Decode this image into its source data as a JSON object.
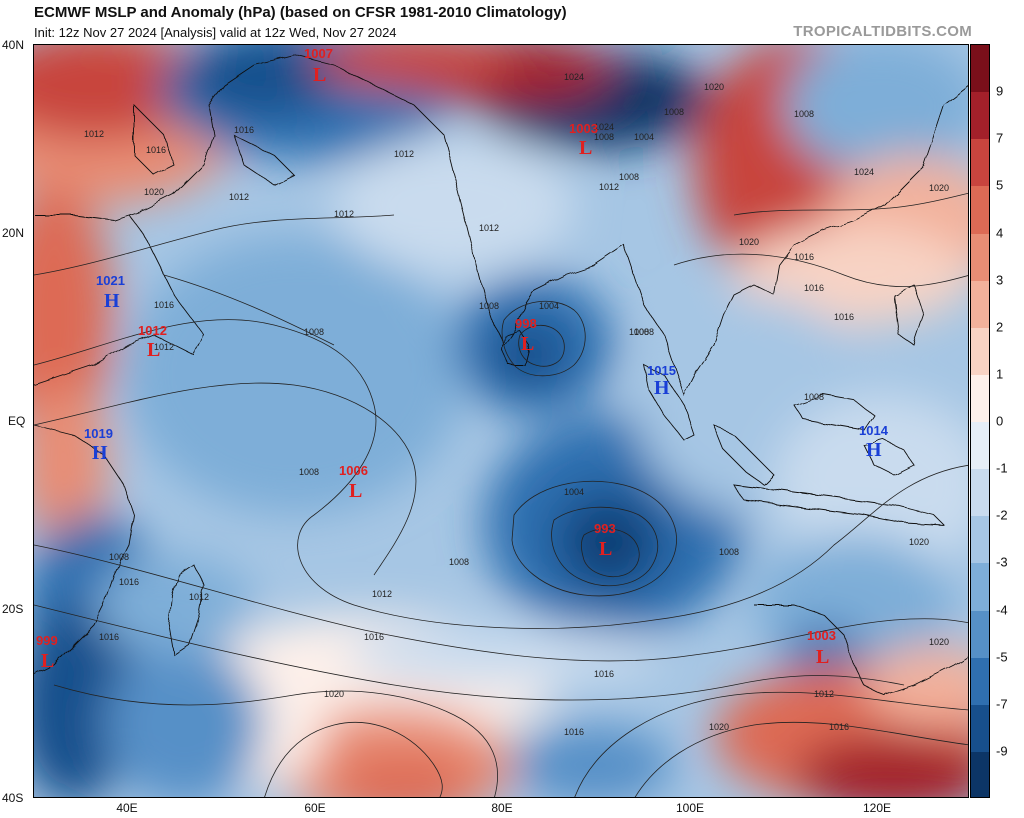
{
  "header": {
    "title": "ECMWF MSLP and Anomaly (hPa) (based on CFSR 1981-2010 Climatology)",
    "subtitle": "Init: 12z Nov 27 2024   [Analysis]   valid at 12z Wed, Nov 27 2024",
    "brand": "TROPICALTIDBITS.COM"
  },
  "axes": {
    "lat_labels": [
      "40N",
      "20N",
      "EQ",
      "20S",
      "40S"
    ],
    "lon_labels": [
      "40E",
      "60E",
      "80E",
      "100E",
      "120E"
    ]
  },
  "colorbar": {
    "labels": [
      "9",
      "7",
      "5",
      "4",
      "3",
      "2",
      "1",
      "0",
      "-1",
      "-2",
      "-3",
      "-4",
      "-5",
      "-7",
      "-9"
    ],
    "colors": [
      "#7a0f1a",
      "#a3202a",
      "#c8443e",
      "#dd6a55",
      "#e88d75",
      "#f2b19b",
      "#f8d3c4",
      "#fdf0ea",
      "#e6eef7",
      "#c9dbee",
      "#a6c6e4",
      "#7eaed8",
      "#5690c7",
      "#2f6fb0",
      "#174f8c",
      "#0c3566"
    ]
  },
  "pressure_systems": [
    {
      "type": "L",
      "value": "1007",
      "color": "#e02020"
    },
    {
      "type": "L",
      "value": "1003",
      "color": "#e02020"
    },
    {
      "type": "H",
      "value": "1021",
      "color": "#1a3fd6"
    },
    {
      "type": "L",
      "value": "1012",
      "color": "#e02020"
    },
    {
      "type": "L",
      "value": "998",
      "color": "#e02020"
    },
    {
      "type": "H",
      "value": "1015",
      "color": "#1a3fd6"
    },
    {
      "type": "H",
      "value": "1019",
      "color": "#1a3fd6"
    },
    {
      "type": "L",
      "value": "1006",
      "color": "#e02020"
    },
    {
      "type": "H",
      "value": "1014",
      "color": "#1a3fd6"
    },
    {
      "type": "L",
      "value": "993",
      "color": "#e02020"
    },
    {
      "type": "L",
      "value": "999",
      "color": "#e02020"
    },
    {
      "type": "L",
      "value": "1003",
      "color": "#e02020"
    }
  ],
  "isobar_labels": [
    "1012",
    "1016",
    "1020",
    "1024",
    "1016",
    "1012",
    "1020",
    "1012",
    "1008",
    "1012",
    "1008",
    "1004",
    "1008",
    "1008",
    "1016",
    "1020",
    "1012",
    "1008",
    "1008",
    "1008",
    "1004",
    "1008",
    "1008",
    "1012",
    "1012",
    "1016",
    "1016",
    "1016",
    "1020",
    "1020",
    "1016",
    "1012",
    "1008",
    "1004",
    "1020",
    "1016",
    "1024",
    "1020",
    "1016",
    "1016",
    "1016",
    "1016",
    "1012",
    "1008",
    "1008",
    "1008",
    "1020",
    "1024",
    "1012"
  ]
}
